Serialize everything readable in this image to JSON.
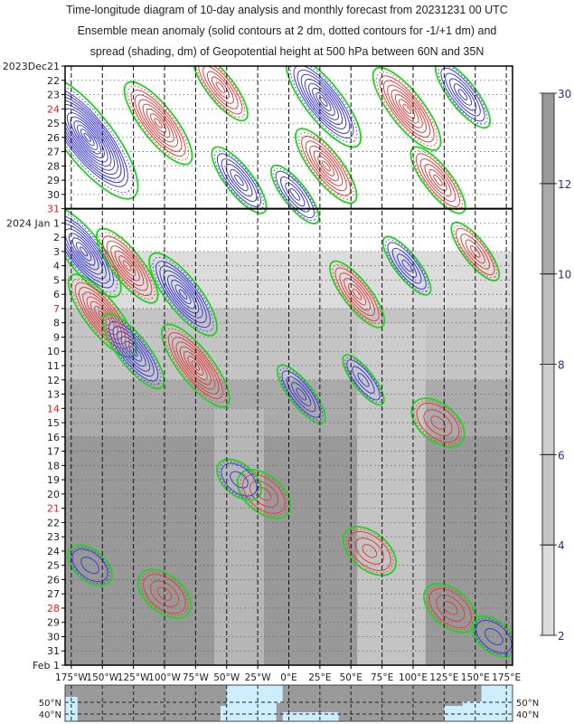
{
  "chart_data": {
    "type": "heatmap",
    "title_lines": [
      "Time-longitude diagram of 10-day analysis and monthly forecast from 20231231 00 UTC",
      "Ensemble mean anomaly (solid contours at 2 dm, dotted contours for -1/+1 dm) and",
      "spread (shading, dm) of Geopotential height at 500 hPa between 60N and 35N"
    ],
    "x_range": [
      -180,
      180
    ],
    "x_ticks": [
      -175,
      -150,
      -125,
      -100,
      -75,
      -50,
      -25,
      0,
      25,
      50,
      75,
      100,
      125,
      150,
      175
    ],
    "x_tick_labels": [
      "175°W",
      "150°W",
      "125°W",
      "100°W",
      "75°W",
      "50°W",
      "25°W",
      "0°E",
      "25°E",
      "50°E",
      "75°E",
      "100°E",
      "125°E",
      "150°E",
      "175°E"
    ],
    "y_days": 42,
    "analysis_end_day": 10,
    "y_tick_labels": [
      {
        "day": 0,
        "label": "2023Dec21",
        "sunday": false
      },
      {
        "day": 1,
        "label": "22",
        "sunday": false
      },
      {
        "day": 2,
        "label": "23",
        "sunday": false
      },
      {
        "day": 3,
        "label": "24",
        "sunday": true
      },
      {
        "day": 4,
        "label": "25",
        "sunday": false
      },
      {
        "day": 5,
        "label": "26",
        "sunday": false
      },
      {
        "day": 6,
        "label": "27",
        "sunday": false
      },
      {
        "day": 7,
        "label": "28",
        "sunday": false
      },
      {
        "day": 8,
        "label": "29",
        "sunday": false
      },
      {
        "day": 9,
        "label": "30",
        "sunday": false
      },
      {
        "day": 10,
        "label": "31",
        "sunday": true
      },
      {
        "day": 11,
        "label": "2024 Jan 1",
        "sunday": false
      },
      {
        "day": 12,
        "label": "2",
        "sunday": false
      },
      {
        "day": 13,
        "label": "3",
        "sunday": false
      },
      {
        "day": 14,
        "label": "4",
        "sunday": false
      },
      {
        "day": 15,
        "label": "5",
        "sunday": false
      },
      {
        "day": 16,
        "label": "6",
        "sunday": false
      },
      {
        "day": 17,
        "label": "7",
        "sunday": true
      },
      {
        "day": 18,
        "label": "8",
        "sunday": false
      },
      {
        "day": 19,
        "label": "9",
        "sunday": false
      },
      {
        "day": 20,
        "label": "10",
        "sunday": false
      },
      {
        "day": 21,
        "label": "11",
        "sunday": false
      },
      {
        "day": 22,
        "label": "12",
        "sunday": false
      },
      {
        "day": 23,
        "label": "13",
        "sunday": false
      },
      {
        "day": 24,
        "label": "14",
        "sunday": true
      },
      {
        "day": 25,
        "label": "15",
        "sunday": false
      },
      {
        "day": 26,
        "label": "16",
        "sunday": false
      },
      {
        "day": 27,
        "label": "17",
        "sunday": false
      },
      {
        "day": 28,
        "label": "18",
        "sunday": false
      },
      {
        "day": 29,
        "label": "19",
        "sunday": false
      },
      {
        "day": 30,
        "label": "20",
        "sunday": false
      },
      {
        "day": 31,
        "label": "21",
        "sunday": true
      },
      {
        "day": 32,
        "label": "22",
        "sunday": false
      },
      {
        "day": 33,
        "label": "23",
        "sunday": false
      },
      {
        "day": 34,
        "label": "24",
        "sunday": false
      },
      {
        "day": 35,
        "label": "25",
        "sunday": false
      },
      {
        "day": 36,
        "label": "26",
        "sunday": false
      },
      {
        "day": 37,
        "label": "27",
        "sunday": false
      },
      {
        "day": 38,
        "label": "28",
        "sunday": true
      },
      {
        "day": 39,
        "label": "29",
        "sunday": false
      },
      {
        "day": 40,
        "label": "30",
        "sunday": false
      },
      {
        "day": 41,
        "label": "31",
        "sunday": false
      },
      {
        "day": 42,
        "label": "Feb 1",
        "sunday": false
      }
    ],
    "colorbar": {
      "levels": [
        2,
        4,
        6,
        8,
        10,
        12,
        30
      ],
      "colors": [
        "#dcdcdc",
        "#c4c4c4",
        "#cecece",
        "#bdbdbd",
        "#aaaaaa",
        "#999999"
      ]
    },
    "spread_bands": [
      {
        "from_day": 13,
        "to_day": 17,
        "spread": 3
      },
      {
        "from_day": 17,
        "to_day": 22,
        "spread": 5
      },
      {
        "from_day": 22,
        "to_day": 42,
        "spread": 10
      },
      {
        "from_day": 26,
        "to_day": 42,
        "spread": 12
      }
    ],
    "light_streaks": [
      {
        "lon_from": 55,
        "lon_to": 110,
        "from_day": 18,
        "to_day": 42,
        "spread": 7
      },
      {
        "lon_from": -60,
        "lon_to": -20,
        "from_day": 24,
        "to_day": 42,
        "spread": 9
      }
    ],
    "anomaly_features": [
      {
        "lon": -162,
        "day": 5,
        "amp": -24
      },
      {
        "lon": -105,
        "day": 4,
        "amp": 14
      },
      {
        "lon": -55,
        "day": 1.5,
        "amp": 10
      },
      {
        "lon": -40,
        "day": 8,
        "amp": -10
      },
      {
        "lon": 28,
        "day": 2.5,
        "amp": -16
      },
      {
        "lon": 30,
        "day": 7,
        "amp": 12
      },
      {
        "lon": 95,
        "day": 3,
        "amp": 14
      },
      {
        "lon": 140,
        "day": 2,
        "amp": -10
      },
      {
        "lon": 5,
        "day": 9,
        "amp": -8
      },
      {
        "lon": 120,
        "day": 8,
        "amp": 10
      },
      {
        "lon": -165,
        "day": 13,
        "amp": -16
      },
      {
        "lon": -130,
        "day": 14,
        "amp": 12
      },
      {
        "lon": -150,
        "day": 17.5,
        "amp": 14
      },
      {
        "lon": -85,
        "day": 16,
        "amp": -14
      },
      {
        "lon": -125,
        "day": 20,
        "amp": -12
      },
      {
        "lon": -75,
        "day": 21,
        "amp": 14
      },
      {
        "lon": 10,
        "day": 23,
        "amp": -8
      },
      {
        "lon": 55,
        "day": 16,
        "amp": 10
      },
      {
        "lon": 150,
        "day": 13,
        "amp": 8
      },
      {
        "lon": 95,
        "day": 14,
        "amp": -8
      },
      {
        "lon": 60,
        "day": 22,
        "amp": -6
      },
      {
        "lon": 120,
        "day": 25,
        "amp": 6
      },
      {
        "lon": -20,
        "day": 30,
        "amp": 6
      },
      {
        "lon": 65,
        "day": 34,
        "amp": 6
      },
      {
        "lon": -160,
        "day": 35,
        "amp": -4
      },
      {
        "lon": -100,
        "day": 37,
        "amp": 6
      },
      {
        "lon": 130,
        "day": 38,
        "amp": 6
      },
      {
        "lon": -40,
        "day": 29,
        "amp": -4
      },
      {
        "lon": 165,
        "day": 40,
        "amp": -4
      }
    ],
    "map": {
      "lat_labels": [
        "50°N",
        "40°N"
      ]
    }
  }
}
